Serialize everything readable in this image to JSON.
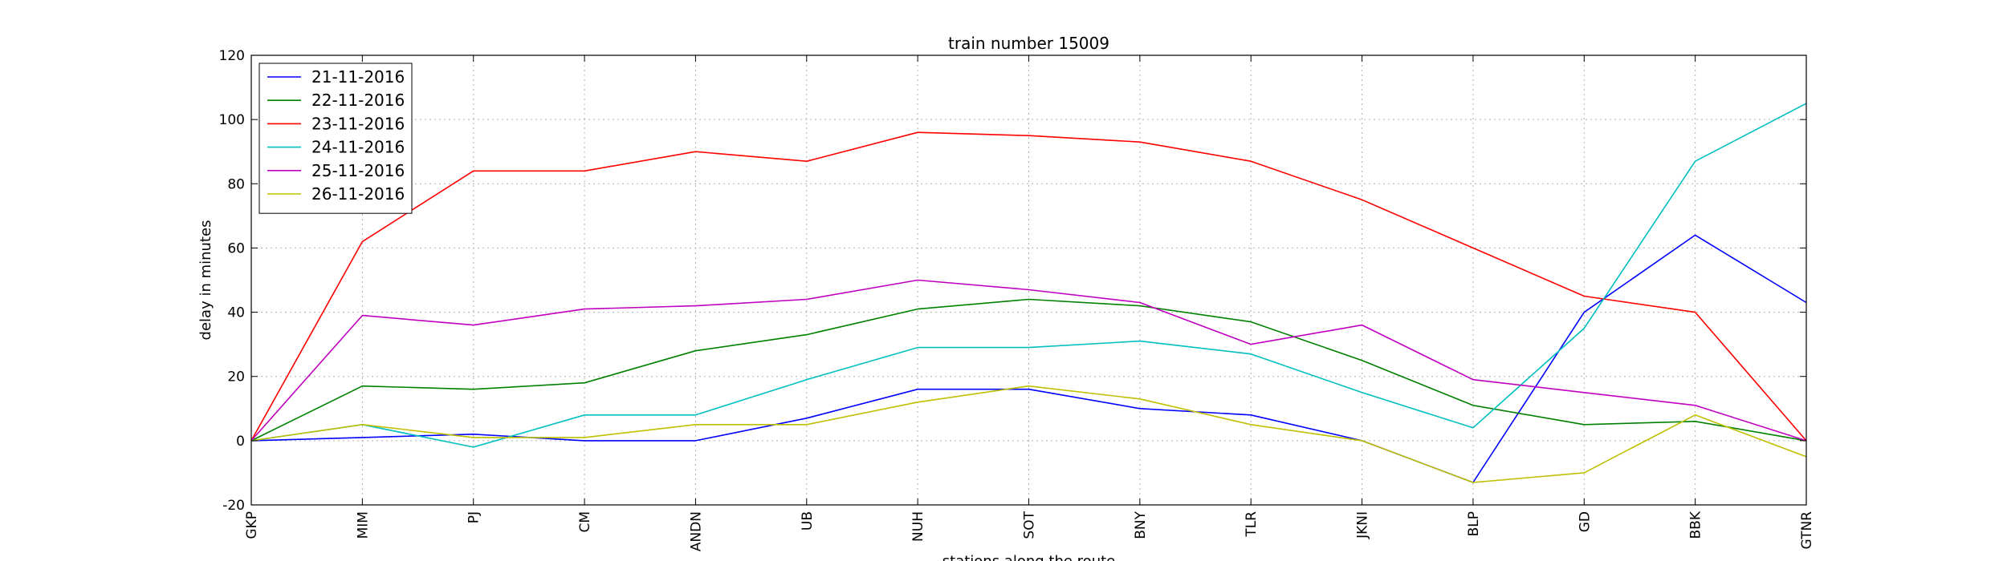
{
  "chart_data": {
    "type": "line",
    "title": "train number 15009",
    "xlabel": "stations along the route",
    "ylabel": "delay in minutes",
    "categories": [
      "GKP",
      "MIM",
      "PJ",
      "CM",
      "ANDN",
      "UB",
      "NUH",
      "SOT",
      "BNY",
      "TLR",
      "JKNI",
      "BLP",
      "GD",
      "BBK",
      "GTNR"
    ],
    "ylim": [
      -20,
      120
    ],
    "yticks": [
      -20,
      0,
      20,
      40,
      60,
      80,
      100,
      120
    ],
    "grid": true,
    "legend_position": "top-left",
    "series": [
      {
        "name": "21-11-2016",
        "color": "#0000ff",
        "values": [
          0,
          1,
          2,
          0,
          0,
          7,
          16,
          16,
          10,
          8,
          0,
          -13,
          40,
          64,
          43
        ]
      },
      {
        "name": "22-11-2016",
        "color": "#008000",
        "values": [
          0,
          17,
          16,
          18,
          28,
          33,
          41,
          44,
          42,
          37,
          25,
          11,
          5,
          6,
          0
        ]
      },
      {
        "name": "23-11-2016",
        "color": "#ff0000",
        "values": [
          0,
          62,
          84,
          84,
          90,
          87,
          96,
          95,
          93,
          87,
          75,
          60,
          45,
          40,
          0
        ]
      },
      {
        "name": "24-11-2016",
        "color": "#00bfbf",
        "values": [
          0,
          5,
          -2,
          8,
          8,
          19,
          29,
          29,
          31,
          27,
          15,
          4,
          35,
          87,
          105
        ]
      },
      {
        "name": "25-11-2016",
        "color": "#bf00bf",
        "values": [
          0,
          39,
          36,
          41,
          42,
          44,
          50,
          47,
          43,
          30,
          36,
          19,
          15,
          11,
          0
        ]
      },
      {
        "name": "26-11-2016",
        "color": "#bfbf00",
        "values": [
          0,
          5,
          1,
          1,
          5,
          5,
          12,
          17,
          13,
          5,
          0,
          -13,
          -10,
          8,
          -5
        ]
      }
    ]
  }
}
